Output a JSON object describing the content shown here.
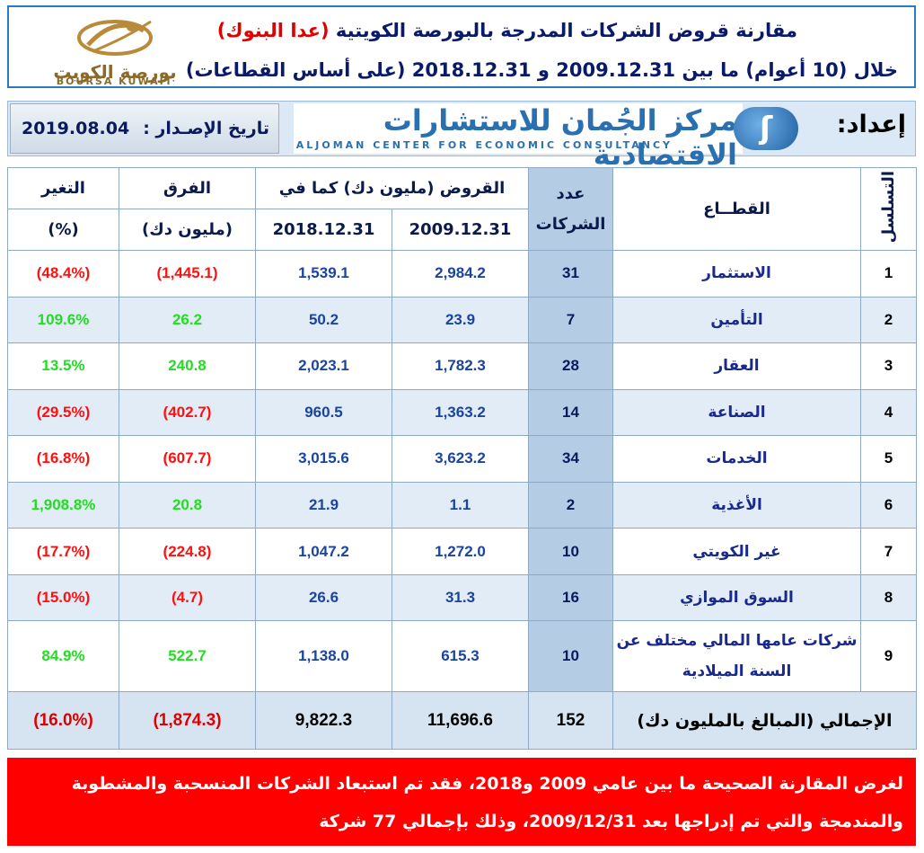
{
  "header": {
    "title_line1_main": "مقارنة قروض الشركات المدرجة بالبورصة الكويتية",
    "title_line1_highlight": "(عدا البنوك)",
    "title_line2": "خلال (10 أعوام) ما بين 2009.12.31 و 2018.12.31 (على أساس القطاعات)",
    "logo_ar": "بورصة الكويت",
    "logo_en": "BOURSA KUWAIT"
  },
  "banner": {
    "issue_label": "تاريخ الإصـدار :",
    "issue_date": "2019.08.04",
    "center_name_ar": "مركز الجُمان للاستشارات الاقتصادية",
    "center_name_en": "ALJOMAN CENTER FOR ECONOMIC CONSULTANCY",
    "prepared_by": "إعداد:"
  },
  "table": {
    "headers": {
      "serial": "التسلسل",
      "sector": "القطــاع",
      "count": "عدد الشركات",
      "loans": "القروض (مليون دك) كما في",
      "date1": "2009.12.31",
      "date2": "2018.12.31",
      "diff": "الفرق",
      "diff_unit": "(مليون دك)",
      "change": "التغير",
      "change_unit": "(%)"
    },
    "rows": [
      {
        "serial": "1",
        "sector": "الاستثمار",
        "count": "31",
        "loan2009": "2,984.2",
        "loan2018": "1,539.1",
        "diff": "(1,445.1)",
        "change": "(48.4%)",
        "sign": "neg"
      },
      {
        "serial": "2",
        "sector": "التأمين",
        "count": "7",
        "loan2009": "23.9",
        "loan2018": "50.2",
        "diff": "26.2",
        "change": "109.6%",
        "sign": "pos"
      },
      {
        "serial": "3",
        "sector": "العقار",
        "count": "28",
        "loan2009": "1,782.3",
        "loan2018": "2,023.1",
        "diff": "240.8",
        "change": "13.5%",
        "sign": "pos"
      },
      {
        "serial": "4",
        "sector": "الصناعة",
        "count": "14",
        "loan2009": "1,363.2",
        "loan2018": "960.5",
        "diff": "(402.7)",
        "change": "(29.5%)",
        "sign": "neg"
      },
      {
        "serial": "5",
        "sector": "الخدمات",
        "count": "34",
        "loan2009": "3,623.2",
        "loan2018": "3,015.6",
        "diff": "(607.7)",
        "change": "(16.8%)",
        "sign": "neg"
      },
      {
        "serial": "6",
        "sector": "الأغذية",
        "count": "2",
        "loan2009": "1.1",
        "loan2018": "21.9",
        "diff": "20.8",
        "change": "1,908.8%",
        "sign": "pos"
      },
      {
        "serial": "7",
        "sector": "غير الكويتي",
        "count": "10",
        "loan2009": "1,272.0",
        "loan2018": "1,047.2",
        "diff": "(224.8)",
        "change": "(17.7%)",
        "sign": "neg"
      },
      {
        "serial": "8",
        "sector": "السوق الموازي",
        "count": "16",
        "loan2009": "31.3",
        "loan2018": "26.6",
        "diff": "(4.7)",
        "change": "(15.0%)",
        "sign": "neg"
      },
      {
        "serial": "9",
        "sector": "شركات عامها المالي مختلف عن السنة الميلادية",
        "count": "10",
        "loan2009": "615.3",
        "loan2018": "1,138.0",
        "diff": "522.7",
        "change": "84.9%",
        "sign": "pos"
      }
    ],
    "total": {
      "label": "الإجمالي (المبالغ بالمليون دك)",
      "count": "152",
      "loan2009": "11,696.6",
      "loan2018": "9,822.3",
      "diff": "(1,874.3)",
      "change": "(16.0%)"
    }
  },
  "footer": {
    "note": "لغرض المقارنة الصحيحة ما بين عامي 2009 و2018، فقد تم استبعاد الشركات المنسحبة والمشطوبة والمندمجة والتي تم إدراجها بعد 2009/12/31، وذلك بإجمالي 77 شركة"
  },
  "colors": {
    "header_border": "#2b7bbf",
    "negative": "#ff1010",
    "positive": "#22dd22",
    "count_column": "#b4cce4",
    "footer_bg": "#ff0000"
  }
}
